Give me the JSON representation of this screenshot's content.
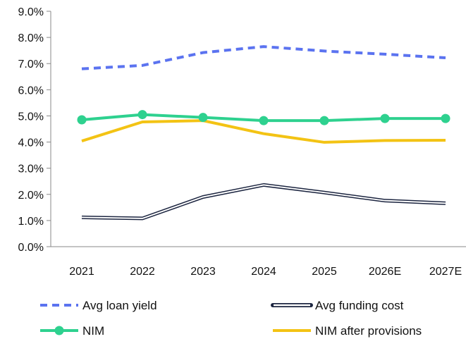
{
  "chart_data": {
    "type": "line",
    "title": "",
    "xlabel": "",
    "ylabel": "",
    "categories": [
      "2021",
      "2022",
      "2023",
      "2024",
      "2025",
      "2026E",
      "2027E"
    ],
    "ylim": [
      0,
      9
    ],
    "yticks": [
      0,
      1,
      2,
      3,
      4,
      5,
      6,
      7,
      8,
      9
    ],
    "ytick_labels": [
      "0.0%",
      "1.0%",
      "2.0%",
      "3.0%",
      "4.0%",
      "5.0%",
      "6.0%",
      "7.0%",
      "8.0%",
      "9.0%"
    ],
    "grid": false,
    "legend_position": "bottom",
    "series": [
      {
        "name": "Avg loan yield",
        "values": [
          6.8,
          6.93,
          7.42,
          7.65,
          7.48,
          7.36,
          7.22
        ],
        "color": "#5b73f0",
        "style": "dashed"
      },
      {
        "name": "Avg funding cost",
        "values": [
          1.12,
          1.08,
          1.9,
          2.36,
          2.07,
          1.76,
          1.66
        ],
        "color": "#1c2540",
        "style": "double-outline"
      },
      {
        "name": "NIM",
        "values": [
          4.85,
          5.05,
          4.94,
          4.82,
          4.82,
          4.9,
          4.9
        ],
        "color": "#2ed18f",
        "style": "solid-markers"
      },
      {
        "name": "NIM after provisions",
        "values": [
          4.04,
          4.77,
          4.82,
          4.32,
          3.99,
          4.06,
          4.07
        ],
        "color": "#f3c314",
        "style": "solid"
      }
    ]
  }
}
